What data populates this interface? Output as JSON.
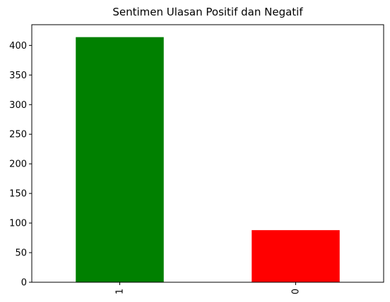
{
  "chart_data": {
    "type": "bar",
    "title": "Sentimen Ulasan Positif dan Negatif",
    "xlabel": "",
    "ylabel": "",
    "categories": [
      "1",
      "0"
    ],
    "values": [
      414,
      88
    ],
    "colors": [
      "#008000",
      "#ff0000"
    ],
    "ylim": [
      0,
      435
    ],
    "yticks": [
      0,
      50,
      100,
      150,
      200,
      250,
      300,
      350,
      400
    ],
    "xtick_rotation": 90,
    "grid": false,
    "legend": "none"
  }
}
